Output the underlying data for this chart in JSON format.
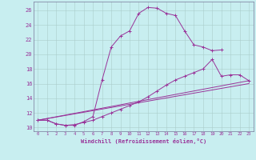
{
  "xlabel": "Windchill (Refroidissement éolien,°C)",
  "ylabel": "",
  "background_color": "#c8eef0",
  "line_color": "#993399",
  "xlim": [
    -0.5,
    23.5
  ],
  "ylim": [
    9.5,
    27.2
  ],
  "xticks": [
    0,
    1,
    2,
    3,
    4,
    5,
    6,
    7,
    8,
    9,
    10,
    11,
    12,
    13,
    14,
    15,
    16,
    17,
    18,
    19,
    20,
    21,
    22,
    23
  ],
  "yticks": [
    10,
    12,
    14,
    16,
    18,
    20,
    22,
    24,
    26
  ],
  "grid_color": "#aacccc",
  "line1_x": [
    0,
    1,
    2,
    3,
    4,
    5,
    6,
    7,
    8,
    9,
    10,
    11,
    12,
    13,
    14,
    15,
    16,
    17,
    18,
    19,
    20
  ],
  "line1_y": [
    11,
    11,
    10.5,
    10.3,
    10.3,
    10.8,
    11.5,
    16.5,
    21,
    22.5,
    23.2,
    25.6,
    26.4,
    26.3,
    25.6,
    25.3,
    23.2,
    21.3,
    21.0,
    20.5,
    20.6
  ],
  "line2_x": [
    0,
    1,
    2,
    3,
    4,
    5,
    6,
    7,
    8,
    9,
    10,
    11,
    12,
    13,
    14,
    15,
    16,
    17,
    18,
    19,
    20,
    21,
    22,
    23
  ],
  "line2_y": [
    11,
    11,
    10.5,
    10.3,
    10.4,
    10.7,
    11.0,
    11.5,
    12.0,
    12.5,
    13.0,
    13.5,
    14.2,
    15.0,
    15.8,
    16.5,
    17.0,
    17.5,
    18.0,
    19.3,
    17.0,
    17.2,
    17.2,
    16.4
  ],
  "line3_x": [
    0,
    23
  ],
  "line3_y": [
    11,
    16.4
  ],
  "line4_x": [
    0,
    23
  ],
  "line4_y": [
    11,
    16.0
  ]
}
